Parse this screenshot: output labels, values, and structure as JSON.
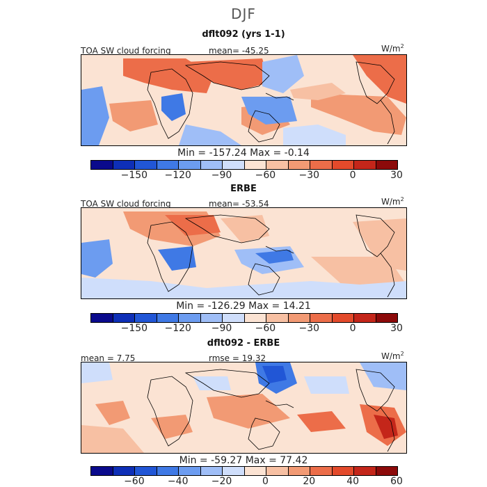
{
  "page": {
    "title": "DJF"
  },
  "panels": [
    {
      "title": "dflt092 (yrs 1-1)",
      "left_label": "TOA SW cloud forcing",
      "center_label": "mean= -45.25",
      "units": "W/m",
      "units_exp": "2",
      "minmax": "Min = -157.24 Max = -0.14",
      "colorbar": {
        "colors": [
          "#0a0a8c",
          "#0e2fb7",
          "#2156d6",
          "#3f79e5",
          "#6c9cf0",
          "#9fbef7",
          "#cfdefb",
          "#fbe3d3",
          "#f7c0a3",
          "#f29a74",
          "#ec6d49",
          "#e34a2b",
          "#c4261a",
          "#8c0a0a"
        ],
        "tick_values": [
          "-150",
          "-120",
          "-90",
          "-60",
          "-30",
          "0",
          "30"
        ]
      },
      "map": {
        "icon": "world-map-contour"
      }
    },
    {
      "title": "ERBE",
      "left_label": "TOA SW cloud forcing",
      "center_label": "mean= -53.54",
      "units": "W/m",
      "units_exp": "2",
      "minmax": "Min = -126.29 Max = 14.21",
      "colorbar": {
        "colors": [
          "#0a0a8c",
          "#0e2fb7",
          "#2156d6",
          "#3f79e5",
          "#6c9cf0",
          "#9fbef7",
          "#cfdefb",
          "#fbe3d3",
          "#f7c0a3",
          "#f29a74",
          "#ec6d49",
          "#e34a2b",
          "#c4261a",
          "#8c0a0a"
        ],
        "tick_values": [
          "-150",
          "-120",
          "-90",
          "-60",
          "-30",
          "0",
          "30"
        ]
      },
      "map": {
        "icon": "world-map-contour"
      }
    },
    {
      "title": "dflt092 - ERBE",
      "left_label": "mean = 7.75",
      "center_label": "rmse = 19.32",
      "units": "W/m",
      "units_exp": "2",
      "minmax": "Min = -59.27 Max = 77.42",
      "colorbar": {
        "colors": [
          "#0a0a8c",
          "#0e2fb7",
          "#2156d6",
          "#3f79e5",
          "#6c9cf0",
          "#9fbef7",
          "#cfdefb",
          "#fbe3d3",
          "#f7c0a3",
          "#f29a74",
          "#ec6d49",
          "#e34a2b",
          "#c4261a",
          "#8c0a0a"
        ],
        "tick_values": [
          "-60",
          "-40",
          "-20",
          "0",
          "20",
          "40",
          "60"
        ]
      },
      "map": {
        "icon": "world-map-contour"
      }
    }
  ]
}
